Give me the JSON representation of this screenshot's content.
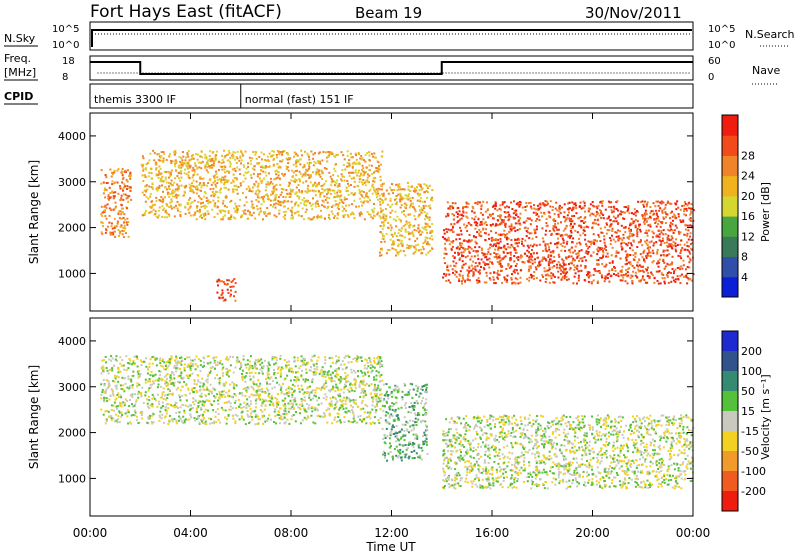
{
  "header": {
    "station": "Fort Hays East (fitACF)",
    "beam": "Beam 19",
    "date": "30/Nov/2011"
  },
  "panels": {
    "nsky": {
      "label": "N.Sky",
      "ticks": [
        "10^5",
        "10^0"
      ],
      "right_ticks": [
        "10^5",
        "10^0"
      ],
      "right_label": "N.Search"
    },
    "freq": {
      "label_line1": "Freq.",
      "label_line2": "[MHz]",
      "ticks": [
        "18",
        "8"
      ],
      "right_ticks": [
        "60",
        "0"
      ],
      "right_label": "Nave",
      "step_times_hours": [
        0,
        2.0,
        14.0,
        24
      ],
      "step_levels": [
        "high",
        "low",
        "high"
      ]
    },
    "cpid": {
      "label": "CPID",
      "modes": [
        {
          "name": "themis 3300 IF",
          "start_hour": 0
        },
        {
          "name": "normal (fast) 151 IF",
          "start_hour": 6.0
        }
      ]
    }
  },
  "axes": {
    "x_label": "Time UT",
    "x_ticks": [
      "00:00",
      "04:00",
      "08:00",
      "12:00",
      "16:00",
      "20:00",
      "00:00"
    ],
    "x_range_hours": [
      0,
      24
    ],
    "y_label": "Slant Range [km]",
    "y_ticks": [
      "1000",
      "2000",
      "3000",
      "4000"
    ],
    "y_range_km": [
      180,
      4500
    ]
  },
  "colorbars": {
    "power": {
      "label": "Power [dB]",
      "ticks": [
        "4",
        "8",
        "12",
        "16",
        "20",
        "24",
        "28"
      ],
      "colors": [
        "#0a1fd6",
        "#2f4fa8",
        "#3a7a5a",
        "#48a640",
        "#d6d630",
        "#f1b21f",
        "#f0842a",
        "#f24a1a",
        "#ef1c10"
      ]
    },
    "velocity": {
      "label": "Velocity [m s⁻¹]",
      "ticks": [
        "200",
        "100",
        "50",
        "15",
        "-15",
        "-50",
        "-100",
        "-200"
      ],
      "colors": [
        "#1e2ad0",
        "#30538c",
        "#358a72",
        "#55c13a",
        "#c9c9c0",
        "#f2d123",
        "#f29a2a",
        "#f05c20",
        "#ef1c10"
      ]
    }
  },
  "chart_data": {
    "type": "heatmap",
    "title": "Fort Hays East (fitACF)",
    "xlabel": "Time UT",
    "ylabel": "Slant Range [km]",
    "xlim_hours": [
      0,
      24
    ],
    "ylim_km": [
      180,
      4500
    ],
    "power_bands_approx": [
      {
        "t_hours": [
          0.4,
          1.6
        ],
        "range_km": [
          1800,
          3300
        ],
        "power_db": 22
      },
      {
        "t_hours": [
          2.0,
          11.6
        ],
        "range_km": [
          2200,
          3700
        ],
        "power_db": 20
      },
      {
        "t_hours": [
          5.0,
          5.8
        ],
        "range_km": [
          400,
          900
        ],
        "power_db": 26
      },
      {
        "t_hours": [
          11.5,
          13.6
        ],
        "range_km": [
          1400,
          3000
        ],
        "power_db": 18
      },
      {
        "t_hours": [
          14.0,
          24.0
        ],
        "range_km": [
          800,
          2600
        ],
        "power_db": 28
      }
    ],
    "velocity_bands_approx": [
      {
        "t_hours": [
          0.4,
          11.6
        ],
        "range_km": [
          2200,
          3700
        ],
        "velocity_ms": 0
      },
      {
        "t_hours": [
          11.6,
          13.4
        ],
        "range_km": [
          1400,
          3100
        ],
        "velocity_ms": 50
      },
      {
        "t_hours": [
          14.0,
          24.0
        ],
        "range_km": [
          800,
          2400
        ],
        "velocity_ms": 0
      }
    ]
  }
}
